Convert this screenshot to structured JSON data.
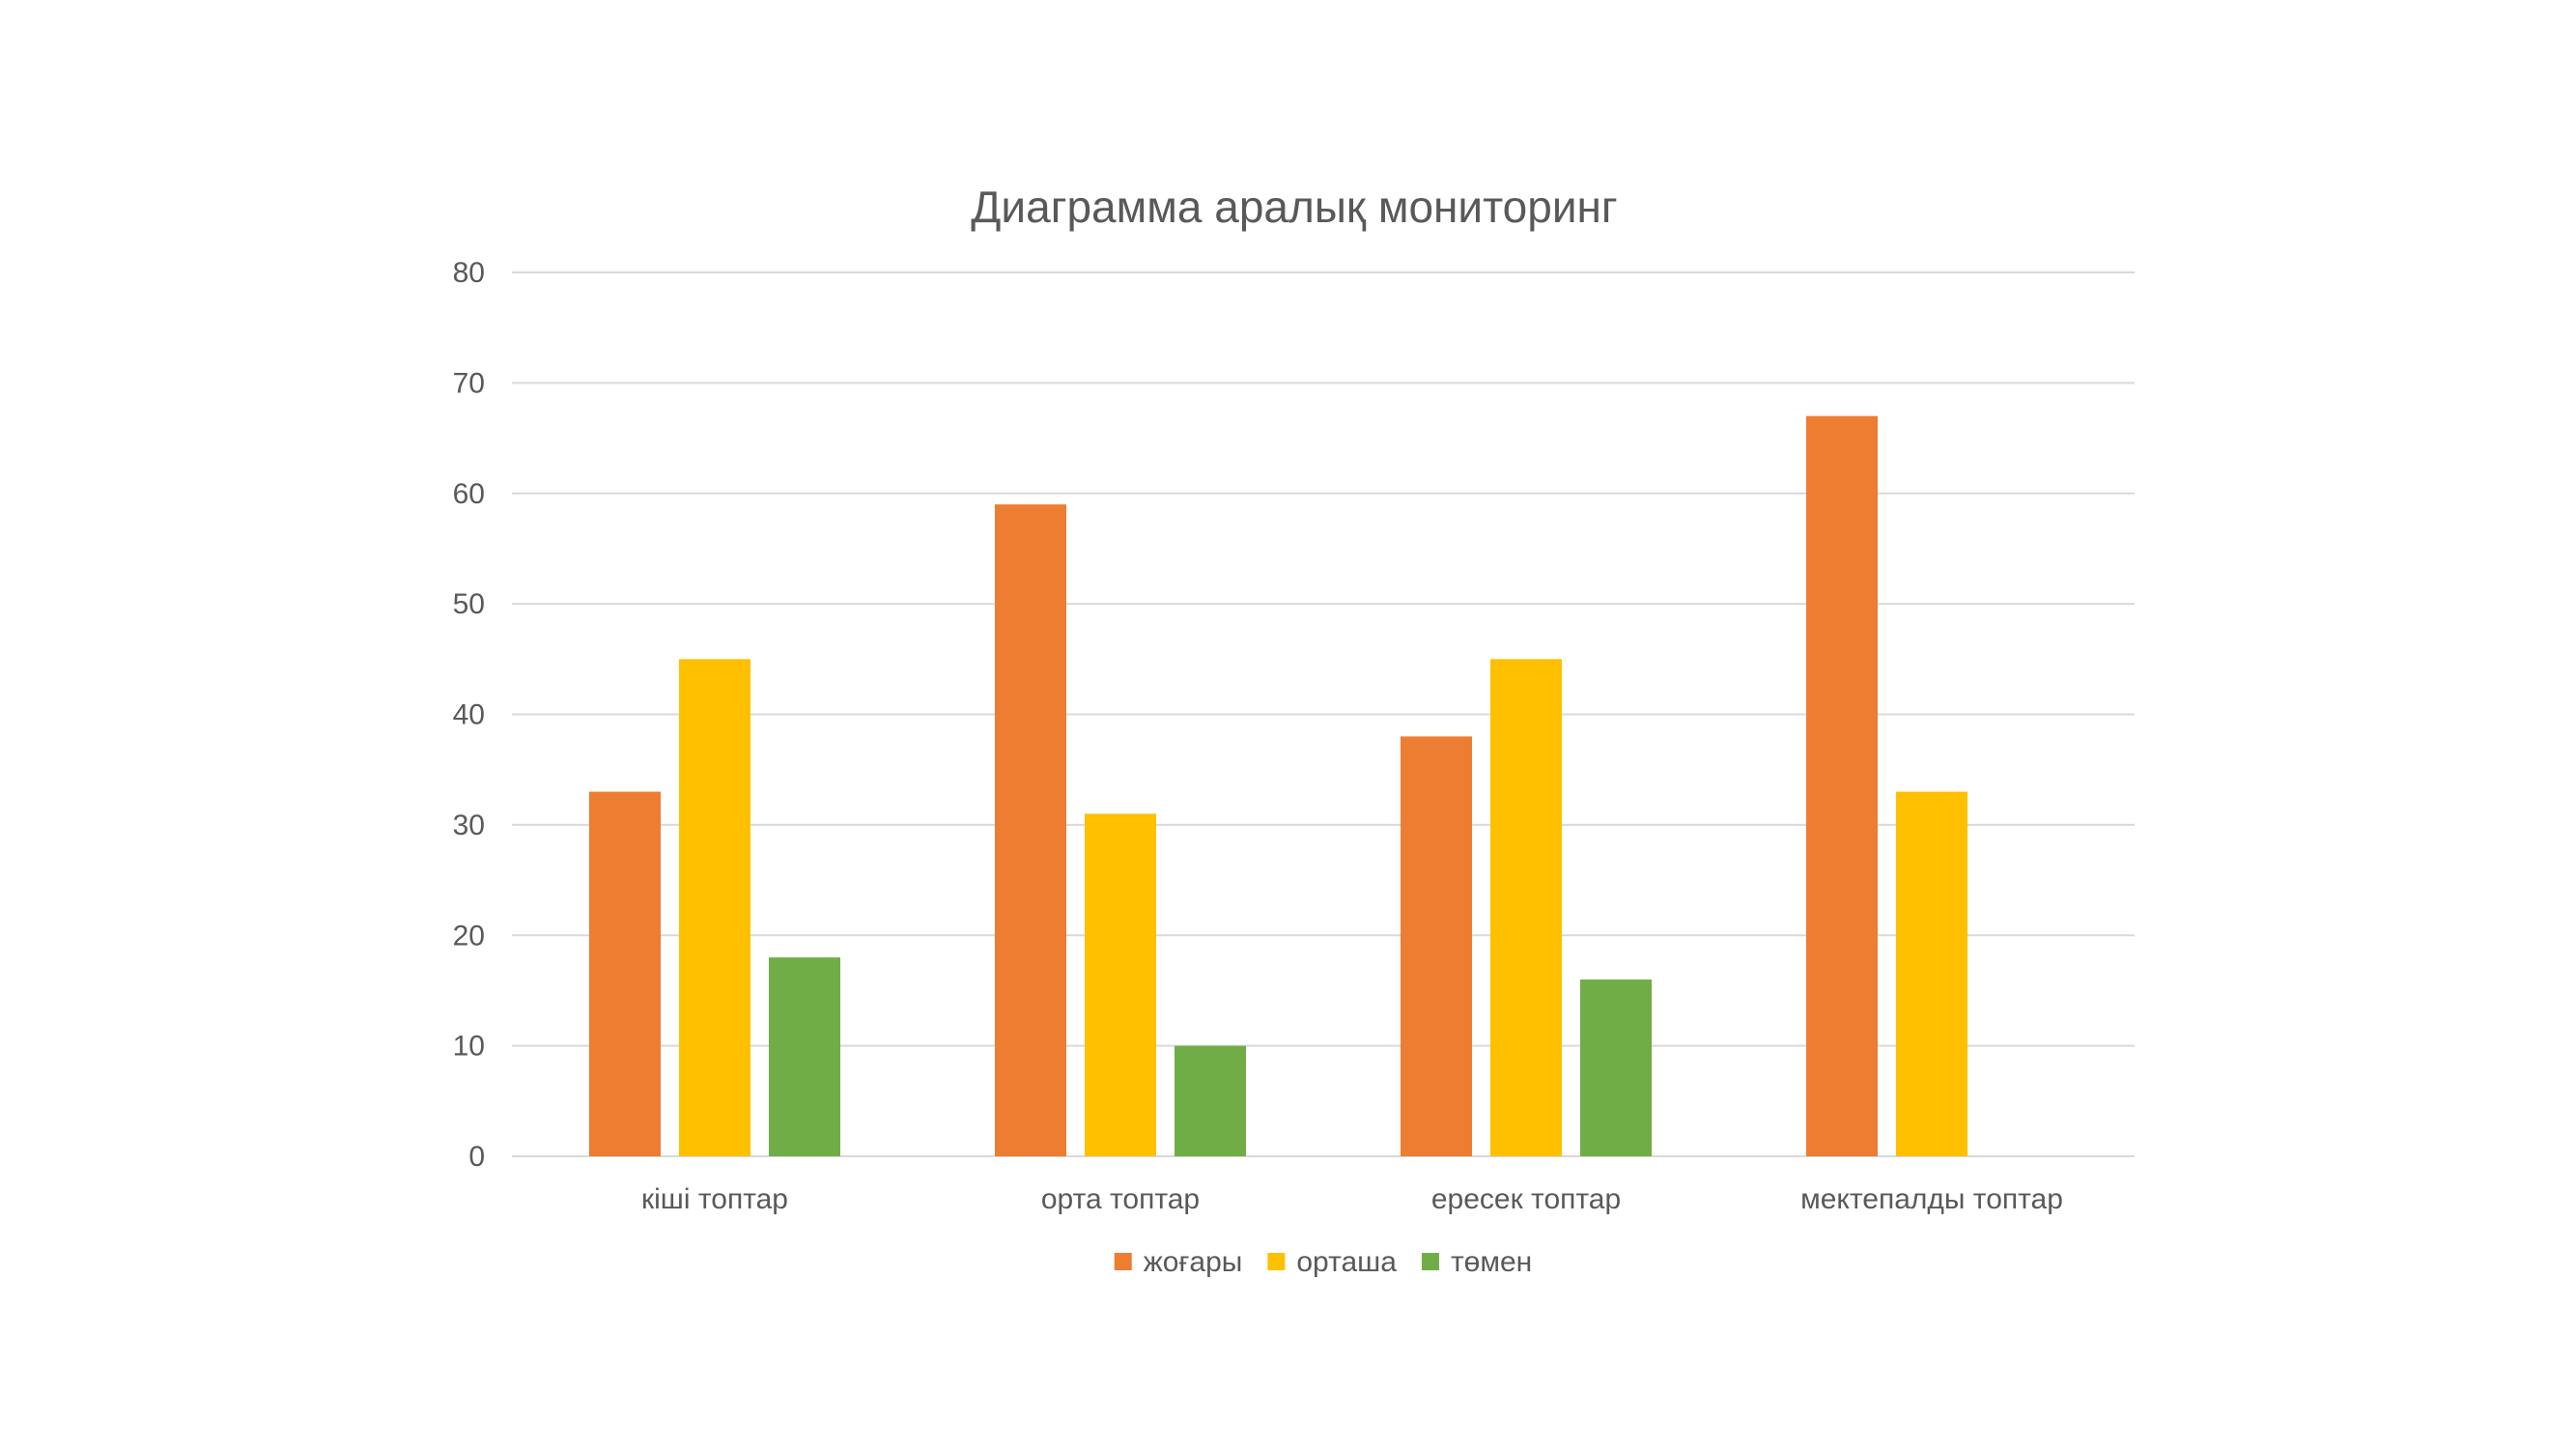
{
  "chart_data": {
    "type": "bar",
    "title": "Диаграмма аралық мониторинг",
    "xlabel": "",
    "ylabel": "",
    "ylim": [
      0,
      80
    ],
    "yticks": [
      0,
      10,
      20,
      30,
      40,
      50,
      60,
      70,
      80
    ],
    "grid": true,
    "legend_position": "bottom",
    "categories": [
      "кіші топтар",
      "орта топтар",
      "ересек топтар",
      "мектепалды топтар"
    ],
    "series": [
      {
        "name": "жоғары",
        "color": "#ED7D31",
        "values": [
          33,
          59,
          38,
          67
        ]
      },
      {
        "name": "орташа",
        "color": "#FFC000",
        "values": [
          45,
          31,
          45,
          33
        ]
      },
      {
        "name": "төмен",
        "color": "#70AD47",
        "values": [
          18,
          10,
          16,
          0
        ]
      }
    ]
  }
}
